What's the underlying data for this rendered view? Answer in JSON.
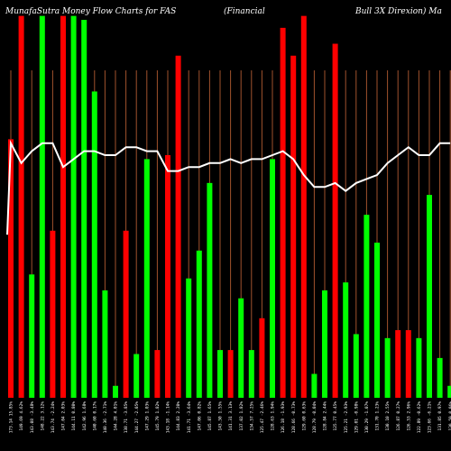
{
  "chart_data": {
    "type": "bar",
    "title_left": "MunafaSutra Money Flow Charts for FAS",
    "title_mid": "(Financial",
    "title_right": "Bull 3X Direxion) Ma",
    "categories": [
      "Tue 18 Feb 2025",
      "Mon 17 Feb 2025",
      "Fri 14 Feb 2025",
      "Thu 13 Feb 2025",
      "Wed 12 Feb 2025",
      "Tue 11 Feb 2025",
      "Mon 10 Feb 2025",
      "Fri 07 Feb 2025",
      "Thu 06 Feb 2025",
      "Wed 05 Feb 2025",
      "Tue 04 Feb 2025",
      "Mon 03 Feb 2025",
      "Fri 31 Jan 2025",
      "Thu 30 Jan 2025",
      "Wed 29 Jan 2025",
      "Tue 28 Jan 2025",
      "Mon 27 Jan 2025",
      "Fri 24 Jan 2025",
      "Thu 23 Jan 2025",
      "Wed 22 Jan 2025",
      "Tue 21 Jan 2025",
      "Fri 17 Jan 2025",
      "Thu 16 Jan 2025",
      "Wed 15 Jan 2025",
      "Tue 14 Jan 2025",
      "Mon 13 Jan 2025",
      "Fri 10 Jan 2025",
      "Wed 08 Jan 2025",
      "Tue 07 Jan 2025",
      "Mon 06 Jan 2025",
      "Fri 03 Jan 2025",
      "Thu 02 Jan 2025",
      "Tue 31 Dec 2024",
      "Mon 30 Dec 2024",
      "Fri 27 Dec 2024",
      "Thu 26 Dec 2024",
      "Tue 24 Dec 2024",
      "Mon 23 Dec 2024",
      "Fri 20 Dec 2024",
      "Thu 19 Dec 2024",
      "Wed 18 Dec 2024",
      "Tue 17 Dec 2024",
      "Mon 16 Dec 2024"
    ],
    "xtick_labels": [
      "173.14 15.85%",
      "149.69 4.62%",
      "143.08 -3.48%",
      "148.22 3.12%",
      "143.74 -2.24%",
      "147.04 2.03%",
      "144.11 0.80%",
      "142.96 1.68%",
      "140.60 0.17%",
      "140.36 -2.71%",
      "144.28 4.01%",
      "138.71 -3.85%",
      "144.27 -2.05%",
      "147.29 1.03%",
      "145.79 1.82%",
      "143.18 -1.14%",
      "144.83 2.20%",
      "141.71 -3.64%",
      "147.06 0.82%",
      "145.87 1.65%",
      "143.50 1.55%",
      "141.31 3.13%",
      "137.02 1.82%",
      "134.57 7.25%",
      "125.47 -2.46%",
      "128.63 1.94%",
      "126.18 -1.93%",
      "128.66 -0.73%",
      "129.60 0.63%",
      "128.79 -0.04%",
      "128.84 2.44%",
      "125.77 0.45%",
      "125.21 -2.93%",
      "129.01 -0.98%",
      "130.29 -1.07%",
      "131.70 1.23%",
      "130.10 2.55%",
      "126.87 0.27%",
      "126.53 2.96%",
      "122.89 -0.62%",
      "123.66 -6.21%",
      "131.85 0.97%",
      "130.59 0.06%"
    ],
    "colors": {
      "positive": "#00ff00",
      "negative": "#ff0000",
      "line": "#ffffff",
      "grid": "#a0522d",
      "background": "#000000"
    },
    "series": [
      {
        "values": [
          0.65,
          0.96,
          0.31,
          0.96,
          0.42,
          0.96,
          0.96,
          0.95,
          0.77,
          0.27,
          0.03,
          0.42,
          0.11,
          0.6,
          0.12,
          0.61,
          0.86,
          0.3,
          0.37,
          0.54,
          0.12,
          0.12,
          0.25,
          0.12,
          0.2,
          0.6,
          0.93,
          0.86,
          0.96,
          0.06,
          0.27,
          0.89,
          0.29,
          0.16,
          0.46,
          0.39,
          0.15,
          0.17,
          0.17,
          0.15,
          0.51,
          0.1,
          0.03
        ],
        "direction": [
          "negative",
          "negative",
          "positive",
          "positive",
          "negative",
          "negative",
          "positive",
          "positive",
          "positive",
          "positive",
          "positive",
          "negative",
          "positive",
          "positive",
          "negative",
          "negative",
          "negative",
          "positive",
          "positive",
          "positive",
          "positive",
          "negative",
          "positive",
          "positive",
          "negative",
          "positive",
          "negative",
          "negative",
          "negative",
          "positive",
          "positive",
          "negative",
          "positive",
          "positive",
          "positive",
          "positive",
          "positive",
          "negative",
          "negative",
          "positive",
          "positive",
          "positive",
          "positive"
        ]
      },
      {
        "values": [
          0.64,
          0.59,
          0.62,
          0.64,
          0.64,
          0.58,
          0.6,
          0.62,
          0.62,
          0.61,
          0.61,
          0.63,
          0.63,
          0.62,
          0.62,
          0.57,
          0.57,
          0.58,
          0.58,
          0.59,
          0.59,
          0.6,
          0.59,
          0.6,
          0.6,
          0.61,
          0.62,
          0.6,
          0.56,
          0.53,
          0.53,
          0.54,
          0.52,
          0.54,
          0.55,
          0.56,
          0.59,
          0.61,
          0.63,
          0.61,
          0.61,
          0.64,
          0.64
        ]
      }
    ]
  }
}
